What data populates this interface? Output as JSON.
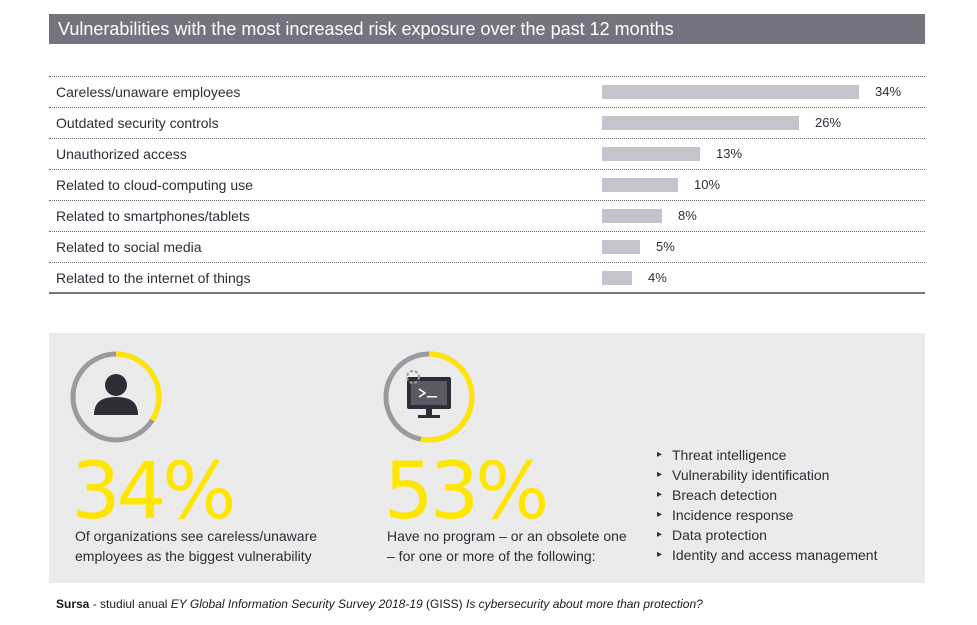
{
  "header": {
    "title": "Vulnerabilities with the most increased risk exposure over the past 12 months"
  },
  "chart_data": {
    "type": "bar",
    "orientation": "horizontal",
    "title": "Vulnerabilities with the most increased risk exposure over the past 12 months",
    "categories": [
      "Careless/unaware employees",
      "Outdated security controls",
      "Unauthorized access",
      "Related to cloud-computing use",
      "Related to smartphones/tablets",
      "Related to social media",
      "Related to the internet of things"
    ],
    "values": [
      34,
      26,
      13,
      10,
      8,
      5,
      4
    ],
    "value_labels": [
      "34%",
      "26%",
      "13%",
      "10%",
      "8%",
      "5%",
      "4%"
    ],
    "unit": "%",
    "xlim": [
      0,
      34
    ],
    "bar_color": "#c4c4cd",
    "grid": false,
    "legend": "none"
  },
  "stats": {
    "left": {
      "number": "34%",
      "fraction": 0.34,
      "line1": "Of organizations see careless/unaware",
      "line2": "employees as the biggest vulnerability",
      "icon": "person-icon"
    },
    "right": {
      "number": "53%",
      "fraction": 0.53,
      "line1": "Have no program – or an obsolete one",
      "line2": "– for one or more of the following:",
      "icon": "computer-monitor-icon",
      "bullets": [
        "Threat intelligence",
        "Vulnerability identification",
        "Breach detection",
        "Incidence response",
        "Data protection",
        "Identity and access management"
      ]
    }
  },
  "source": {
    "label": "Sursa",
    "text": " - studiul anual ",
    "survey": "EY Global Information Security Survey 2018-19",
    "abbr": " (GISS) ",
    "question": "Is cybersecurity about more than protection?"
  },
  "colors": {
    "accent": "#ffe600",
    "gray_dark": "#747480",
    "bar": "#c4c4cd",
    "panel_bg": "#ebebeb",
    "text": "#2e2e38"
  }
}
